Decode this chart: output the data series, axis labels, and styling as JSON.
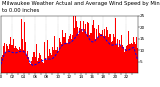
{
  "title_line1": "Milwaukee Weather Actual and Average Wind Speed by Minute mph (Last 24 Hours)",
  "title_line2": "to 0.00 inches",
  "n_points": 1440,
  "bar_color": "#FF0000",
  "line_color": "#0000FF",
  "background_color": "#FFFFFF",
  "plot_bg_color": "#FFFFFF",
  "ylim": [
    0,
    25
  ],
  "yticks": [
    5,
    10,
    15,
    20,
    25
  ],
  "grid_color": "#999999",
  "title_fontsize": 3.8,
  "axis_fontsize": 3.0,
  "seed": 42
}
